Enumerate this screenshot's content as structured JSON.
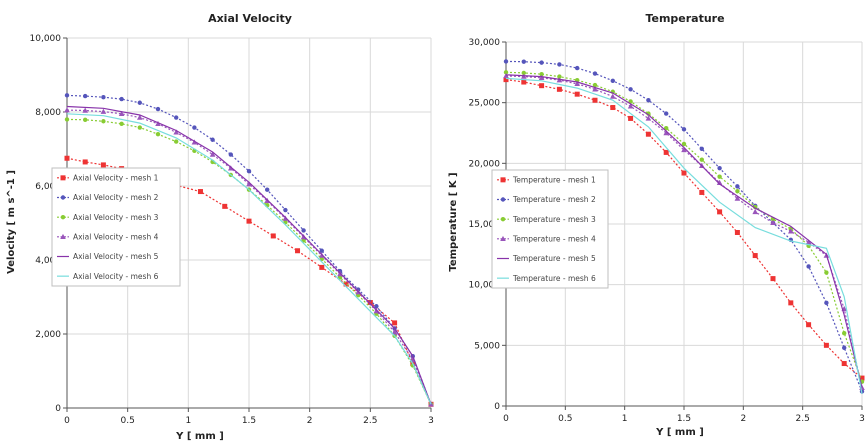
{
  "chart_data": [
    {
      "type": "line",
      "title": "Axial Velocity",
      "xlabel": "Y [ mm ]",
      "ylabel": "Velocity [ m s^-1 ]",
      "xlim": [
        0,
        3
      ],
      "ylim": [
        0,
        10000
      ],
      "xticks": [
        0,
        0.5,
        1,
        1.5,
        2,
        2.5,
        3
      ],
      "xtick_labels": [
        "0",
        "0.5",
        "1",
        "1.5",
        "2",
        "2.5",
        "3"
      ],
      "yticks": [
        0,
        2000,
        4000,
        6000,
        8000,
        10000
      ],
      "ytick_labels": [
        "0",
        "2,000",
        "4,000",
        "6,000",
        "8,000",
        "10,000"
      ],
      "grid": true,
      "legend_position": "left",
      "series": [
        {
          "name": "Axial Velocity - mesh 1",
          "color": "#ee3333",
          "dashed": true,
          "marker": "square",
          "x": [
            0,
            0.15,
            0.3,
            0.45,
            0.6,
            0.75,
            0.9,
            1.1,
            1.3,
            1.5,
            1.7,
            1.9,
            2.1,
            2.3,
            2.5,
            2.7,
            2.85,
            3.0
          ],
          "y": [
            6750,
            6650,
            6570,
            6470,
            6330,
            6180,
            6020,
            5850,
            5450,
            5050,
            4650,
            4250,
            3800,
            3350,
            2850,
            2300,
            1200,
            100
          ]
        },
        {
          "name": "Axial Velocity - mesh 2",
          "color": "#5555bb",
          "dashed": true,
          "marker": "circle",
          "x": [
            0,
            0.15,
            0.3,
            0.45,
            0.6,
            0.75,
            0.9,
            1.05,
            1.2,
            1.35,
            1.5,
            1.65,
            1.8,
            1.95,
            2.1,
            2.25,
            2.4,
            2.55,
            2.7,
            2.85,
            3.0
          ],
          "y": [
            8450,
            8430,
            8400,
            8350,
            8250,
            8080,
            7850,
            7580,
            7250,
            6850,
            6400,
            5900,
            5350,
            4800,
            4250,
            3700,
            3200,
            2750,
            2150,
            1400,
            100
          ]
        },
        {
          "name": "Axial Velocity - mesh 3",
          "color": "#88cc33",
          "dashed": true,
          "marker": "circle",
          "x": [
            0,
            0.15,
            0.3,
            0.45,
            0.6,
            0.75,
            0.9,
            1.05,
            1.2,
            1.35,
            1.5,
            1.65,
            1.8,
            1.95,
            2.1,
            2.25,
            2.4,
            2.55,
            2.7,
            2.85,
            3.0
          ],
          "y": [
            7800,
            7790,
            7750,
            7680,
            7580,
            7400,
            7200,
            6950,
            6650,
            6300,
            5900,
            5480,
            5020,
            4530,
            4030,
            3530,
            3050,
            2550,
            1950,
            1150,
            100
          ]
        },
        {
          "name": "Axial Velocity - mesh 4",
          "color": "#9955bb",
          "dashed": true,
          "marker": "triangle",
          "x": [
            0,
            0.15,
            0.3,
            0.45,
            0.6,
            0.75,
            0.9,
            1.05,
            1.2,
            1.35,
            1.5,
            1.65,
            1.8,
            1.95,
            2.1,
            2.25,
            2.4,
            2.55,
            2.7,
            2.85,
            3.0
          ],
          "y": [
            8050,
            8040,
            8010,
            7950,
            7850,
            7680,
            7450,
            7180,
            6850,
            6480,
            6050,
            5600,
            5120,
            4620,
            4120,
            3620,
            3130,
            2620,
            2050,
            1300,
            100
          ]
        },
        {
          "name": "Axial Velocity - mesh 5",
          "color": "#8833aa",
          "dashed": false,
          "marker": "none",
          "x": [
            0,
            0.3,
            0.6,
            0.9,
            1.2,
            1.5,
            1.8,
            2.1,
            2.4,
            2.7,
            2.85,
            3.0
          ],
          "y": [
            8150,
            8100,
            7920,
            7500,
            6920,
            6100,
            5150,
            4150,
            3150,
            2150,
            1400,
            100
          ]
        },
        {
          "name": "Axial Velocity - mesh 6",
          "color": "#77dddd",
          "dashed": false,
          "marker": "none",
          "x": [
            0,
            0.3,
            0.6,
            0.9,
            1.2,
            1.5,
            1.8,
            2.1,
            2.4,
            2.7,
            2.85,
            3.0
          ],
          "y": [
            7950,
            7900,
            7700,
            7300,
            6700,
            5900,
            4950,
            3950,
            2950,
            1950,
            1200,
            100
          ]
        }
      ]
    },
    {
      "type": "line",
      "title": "Temperature",
      "xlabel": "Y [ mm ]",
      "ylabel": "Temperature [ K ]",
      "xlim": [
        0,
        3
      ],
      "ylim": [
        0,
        30000
      ],
      "xticks": [
        0,
        0.5,
        1,
        1.5,
        2,
        2.5,
        3
      ],
      "xtick_labels": [
        "0",
        "0.5",
        "1",
        "1.5",
        "2",
        "2.5",
        "3"
      ],
      "yticks": [
        0,
        5000,
        10000,
        15000,
        20000,
        25000,
        30000
      ],
      "ytick_labels": [
        "0",
        "5,000",
        "10,000",
        "15,000",
        "20,000",
        "25,000",
        "30,000"
      ],
      "grid": true,
      "legend_position": "left",
      "series": [
        {
          "name": "Temperature - mesh 1",
          "color": "#ee3333",
          "dashed": true,
          "marker": "square",
          "x": [
            0,
            0.15,
            0.3,
            0.45,
            0.6,
            0.75,
            0.9,
            1.05,
            1.2,
            1.35,
            1.5,
            1.65,
            1.8,
            1.95,
            2.1,
            2.25,
            2.4,
            2.55,
            2.7,
            2.85,
            3.0
          ],
          "y": [
            26900,
            26700,
            26400,
            26100,
            25700,
            25200,
            24600,
            23700,
            22400,
            20900,
            19200,
            17600,
            16000,
            14300,
            12400,
            10500,
            8500,
            6700,
            5000,
            3500,
            2300
          ]
        },
        {
          "name": "Temperature - mesh 2",
          "color": "#5555bb",
          "dashed": true,
          "marker": "circle",
          "x": [
            0,
            0.15,
            0.3,
            0.45,
            0.6,
            0.75,
            0.9,
            1.05,
            1.2,
            1.35,
            1.5,
            1.65,
            1.8,
            1.95,
            2.1,
            2.25,
            2.4,
            2.55,
            2.7,
            2.85,
            3.0
          ],
          "y": [
            28400,
            28380,
            28300,
            28150,
            27850,
            27400,
            26800,
            26100,
            25200,
            24100,
            22800,
            21200,
            19600,
            18100,
            16500,
            15100,
            13700,
            11500,
            8500,
            4800,
            1200
          ]
        },
        {
          "name": "Temperature - mesh 3",
          "color": "#88cc33",
          "dashed": true,
          "marker": "circle",
          "x": [
            0,
            0.15,
            0.3,
            0.45,
            0.6,
            0.75,
            0.9,
            1.05,
            1.2,
            1.35,
            1.5,
            1.65,
            1.8,
            1.95,
            2.1,
            2.25,
            2.4,
            2.55,
            2.7,
            2.85,
            3.0
          ],
          "y": [
            27500,
            27450,
            27350,
            27150,
            26850,
            26450,
            25900,
            25100,
            24100,
            22900,
            21600,
            20300,
            18900,
            17700,
            16400,
            15400,
            14600,
            13200,
            11000,
            6000,
            2000
          ]
        },
        {
          "name": "Temperature - mesh 4",
          "color": "#9955bb",
          "dashed": true,
          "marker": "triangle",
          "x": [
            0,
            0.15,
            0.3,
            0.45,
            0.6,
            0.75,
            0.9,
            1.05,
            1.2,
            1.35,
            1.5,
            1.65,
            1.8,
            1.95,
            2.1,
            2.25,
            2.4,
            2.55,
            2.7,
            2.85,
            3.0
          ],
          "y": [
            27200,
            27150,
            27050,
            26850,
            26550,
            26100,
            25500,
            24700,
            23700,
            22500,
            21100,
            19800,
            18400,
            17100,
            16000,
            15100,
            14400,
            13500,
            12400,
            8000,
            1500
          ]
        },
        {
          "name": "Temperature - mesh 5",
          "color": "#8833aa",
          "dashed": false,
          "marker": "none",
          "x": [
            0,
            0.3,
            0.6,
            0.9,
            1.2,
            1.5,
            1.8,
            2.1,
            2.4,
            2.7,
            2.85,
            3.0
          ],
          "y": [
            27300,
            27150,
            26700,
            25800,
            24000,
            21300,
            18300,
            16300,
            14800,
            12500,
            7500,
            1500
          ]
        },
        {
          "name": "Temperature - mesh 6",
          "color": "#77dddd",
          "dashed": false,
          "marker": "none",
          "x": [
            0,
            0.3,
            0.6,
            0.9,
            1.2,
            1.5,
            1.8,
            2.1,
            2.4,
            2.7,
            2.85,
            3.0
          ],
          "y": [
            27000,
            26800,
            26200,
            25200,
            23000,
            19600,
            16800,
            14700,
            13600,
            13000,
            9000,
            1000
          ]
        }
      ]
    }
  ]
}
